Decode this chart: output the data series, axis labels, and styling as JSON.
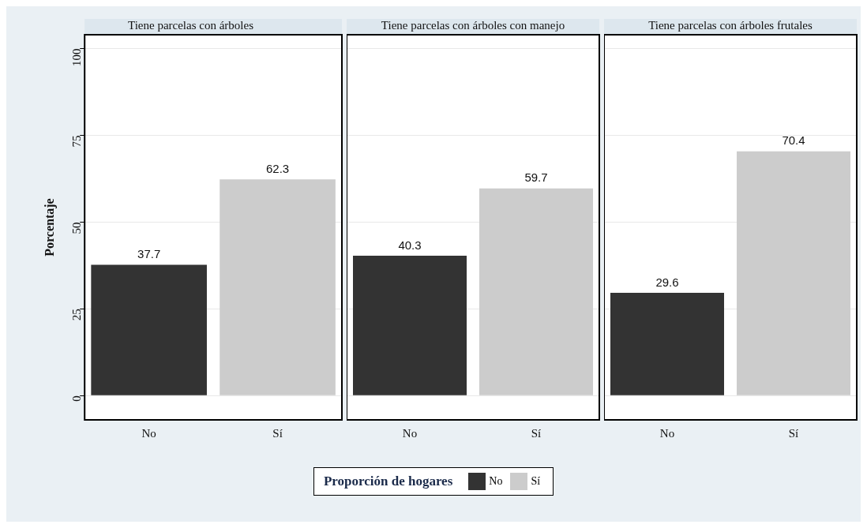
{
  "chart_data": [
    {
      "type": "bar",
      "title": "Tiene parcelas con árboles",
      "ylabel": "Porcentaje",
      "categories": [
        "No",
        "Sí"
      ],
      "series": [
        {
          "name": "No",
          "color": "#333333",
          "values": [
            37.7,
            null
          ]
        },
        {
          "name": "Sí",
          "color": "#cccccc",
          "values": [
            null,
            62.3
          ]
        }
      ],
      "ylim": [
        -7,
        104
      ],
      "yticks": [
        0,
        25,
        50,
        75,
        100
      ],
      "grid": "y",
      "data_labels": true,
      "legend": "bottom",
      "legend_title": "Proporción de hogares"
    },
    {
      "type": "bar",
      "title": "Tiene parcelas con árboles con manejo",
      "categories": [
        "No",
        "Sí"
      ],
      "series": [
        {
          "color": "#333333",
          "values": [
            40.3,
            null
          ]
        },
        {
          "color": "#cccccc",
          "values": [
            null,
            59.7
          ]
        }
      ],
      "ylim": [
        -7,
        104
      ],
      "yticks": [
        0,
        25,
        50,
        75,
        100
      ],
      "grid": "y",
      "data_labels": true,
      "tick_labels": "x"
    },
    {
      "type": "bar",
      "title": "Tiene parcelas con árboles frutales",
      "categories": [
        "No",
        "Sí"
      ],
      "series": [
        {
          "color": "#333333",
          "values": [
            29.6,
            null
          ]
        },
        {
          "color": "#cccccc",
          "values": [
            null,
            70.4
          ]
        }
      ],
      "ylim": [
        -7,
        104
      ],
      "yticks": [
        0,
        25,
        50,
        75,
        100
      ],
      "grid": "y",
      "data_labels": true,
      "tick_labels": "x"
    }
  ]
}
